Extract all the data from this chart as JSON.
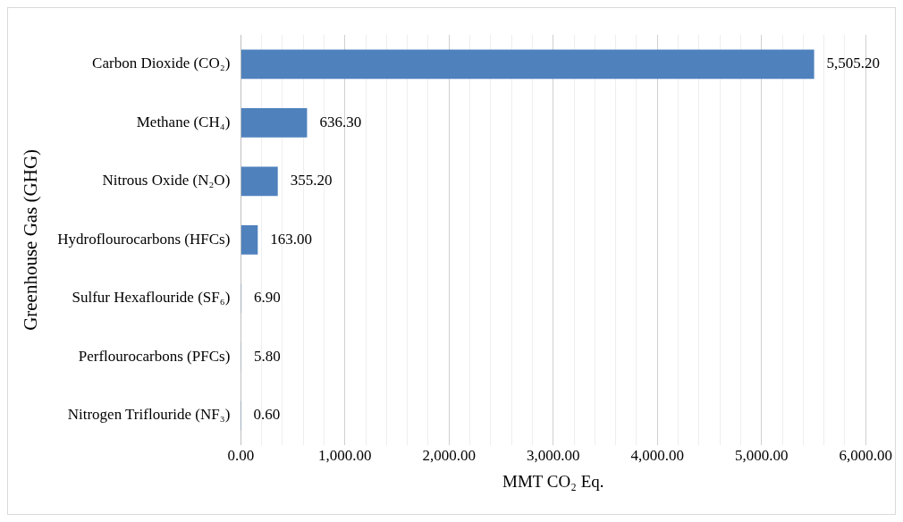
{
  "chart_data": {
    "type": "bar",
    "orientation": "horizontal",
    "xlabel": "MMT CO₂ Eq.",
    "ylabel": "Greenhouse Gas (GHG)",
    "categories": [
      "Carbon Dioxide (CO₂)",
      "Methane (CH₄)",
      "Nitrous Oxide (N₂O)",
      "Hydroflourocarbons (HFCs)",
      "Sulfur Hexaflouride (SF₆)",
      "Perflourocarbons (PFCs)",
      "Nitrogen Triflouride (NF₃)"
    ],
    "values": [
      5505.2,
      636.3,
      355.2,
      163.0,
      6.9,
      5.8,
      0.6
    ],
    "value_labels": [
      "5,505.20",
      "636.30",
      "355.20",
      "163.00",
      "6.90",
      "5.80",
      "0.60"
    ],
    "color": "#4f81bd",
    "xlim": [
      0,
      6000
    ],
    "xticks": [
      {
        "value": 0,
        "label": "0.00"
      },
      {
        "value": 200,
        "label": null
      },
      {
        "value": 400,
        "label": null
      },
      {
        "value": 600,
        "label": null
      },
      {
        "value": 800,
        "label": null
      },
      {
        "value": 1000,
        "label": "1,000.00"
      },
      {
        "value": 1200,
        "label": null
      },
      {
        "value": 1400,
        "label": null
      },
      {
        "value": 1600,
        "label": null
      },
      {
        "value": 1800,
        "label": null
      },
      {
        "value": 2000,
        "label": "2,000.00"
      },
      {
        "value": 2200,
        "label": null
      },
      {
        "value": 2400,
        "label": null
      },
      {
        "value": 2600,
        "label": null
      },
      {
        "value": 2800,
        "label": null
      },
      {
        "value": 3000,
        "label": "3,000.00"
      },
      {
        "value": 3200,
        "label": null
      },
      {
        "value": 3400,
        "label": null
      },
      {
        "value": 3600,
        "label": null
      },
      {
        "value": 3800,
        "label": null
      },
      {
        "value": 4000,
        "label": "4,000.00"
      },
      {
        "value": 4200,
        "label": null
      },
      {
        "value": 4400,
        "label": null
      },
      {
        "value": 4600,
        "label": null
      },
      {
        "value": 4800,
        "label": null
      },
      {
        "value": 5000,
        "label": "5,000.00"
      },
      {
        "value": 5200,
        "label": null
      },
      {
        "value": 5400,
        "label": null
      },
      {
        "value": 5600,
        "label": null
      },
      {
        "value": 5800,
        "label": null
      },
      {
        "value": 6000,
        "label": "6,000.00"
      }
    ],
    "grid": "x",
    "legend": false
  }
}
